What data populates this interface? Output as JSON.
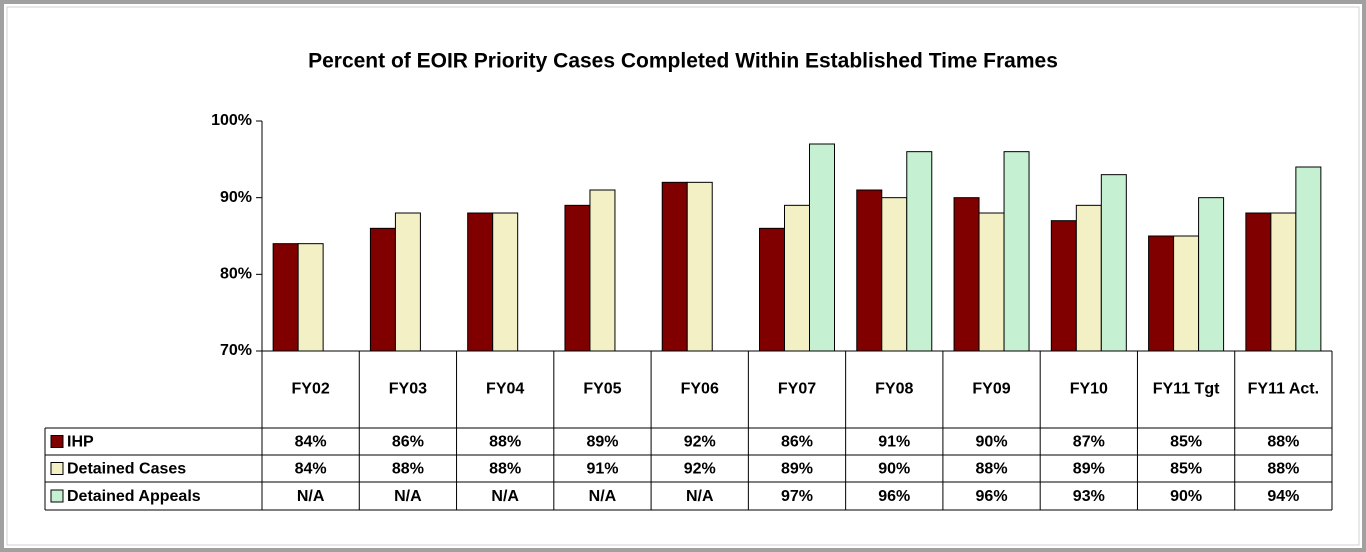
{
  "chart_data": {
    "type": "bar",
    "title": "Percent of EOIR Priority Cases Completed Within Established Time Frames",
    "categories": [
      "FY02",
      "FY03",
      "FY04",
      "FY05",
      "FY06",
      "FY07",
      "FY08",
      "FY09",
      "FY10",
      "FY11 Tgt",
      "FY11 Act."
    ],
    "series": [
      {
        "name": "IHP",
        "color": "#800000",
        "values": [
          84,
          86,
          88,
          89,
          92,
          86,
          91,
          90,
          87,
          85,
          88
        ],
        "value_labels": [
          "84%",
          "86%",
          "88%",
          "89%",
          "92%",
          "86%",
          "91%",
          "90%",
          "87%",
          "85%",
          "88%"
        ]
      },
      {
        "name": "Detained Cases",
        "color": "#f2f0c4",
        "values": [
          84,
          88,
          88,
          91,
          92,
          89,
          90,
          88,
          89,
          85,
          88
        ],
        "value_labels": [
          "84%",
          "88%",
          "88%",
          "91%",
          "92%",
          "89%",
          "90%",
          "88%",
          "89%",
          "85%",
          "88%"
        ]
      },
      {
        "name": "Detained Appeals",
        "color": "#c6f0d2",
        "values": [
          null,
          null,
          null,
          null,
          null,
          97,
          96,
          96,
          93,
          90,
          94
        ],
        "value_labels": [
          "N/A",
          "N/A",
          "N/A",
          "N/A",
          "N/A",
          "97%",
          "96%",
          "96%",
          "93%",
          "90%",
          "94%"
        ]
      }
    ],
    "ylim": [
      70,
      100
    ],
    "yticks": [
      {
        "value": 70,
        "label": "70%"
      },
      {
        "value": 80,
        "label": "80%"
      },
      {
        "value": 90,
        "label": "90%"
      },
      {
        "value": 100,
        "label": "100%"
      }
    ],
    "grid": false
  }
}
